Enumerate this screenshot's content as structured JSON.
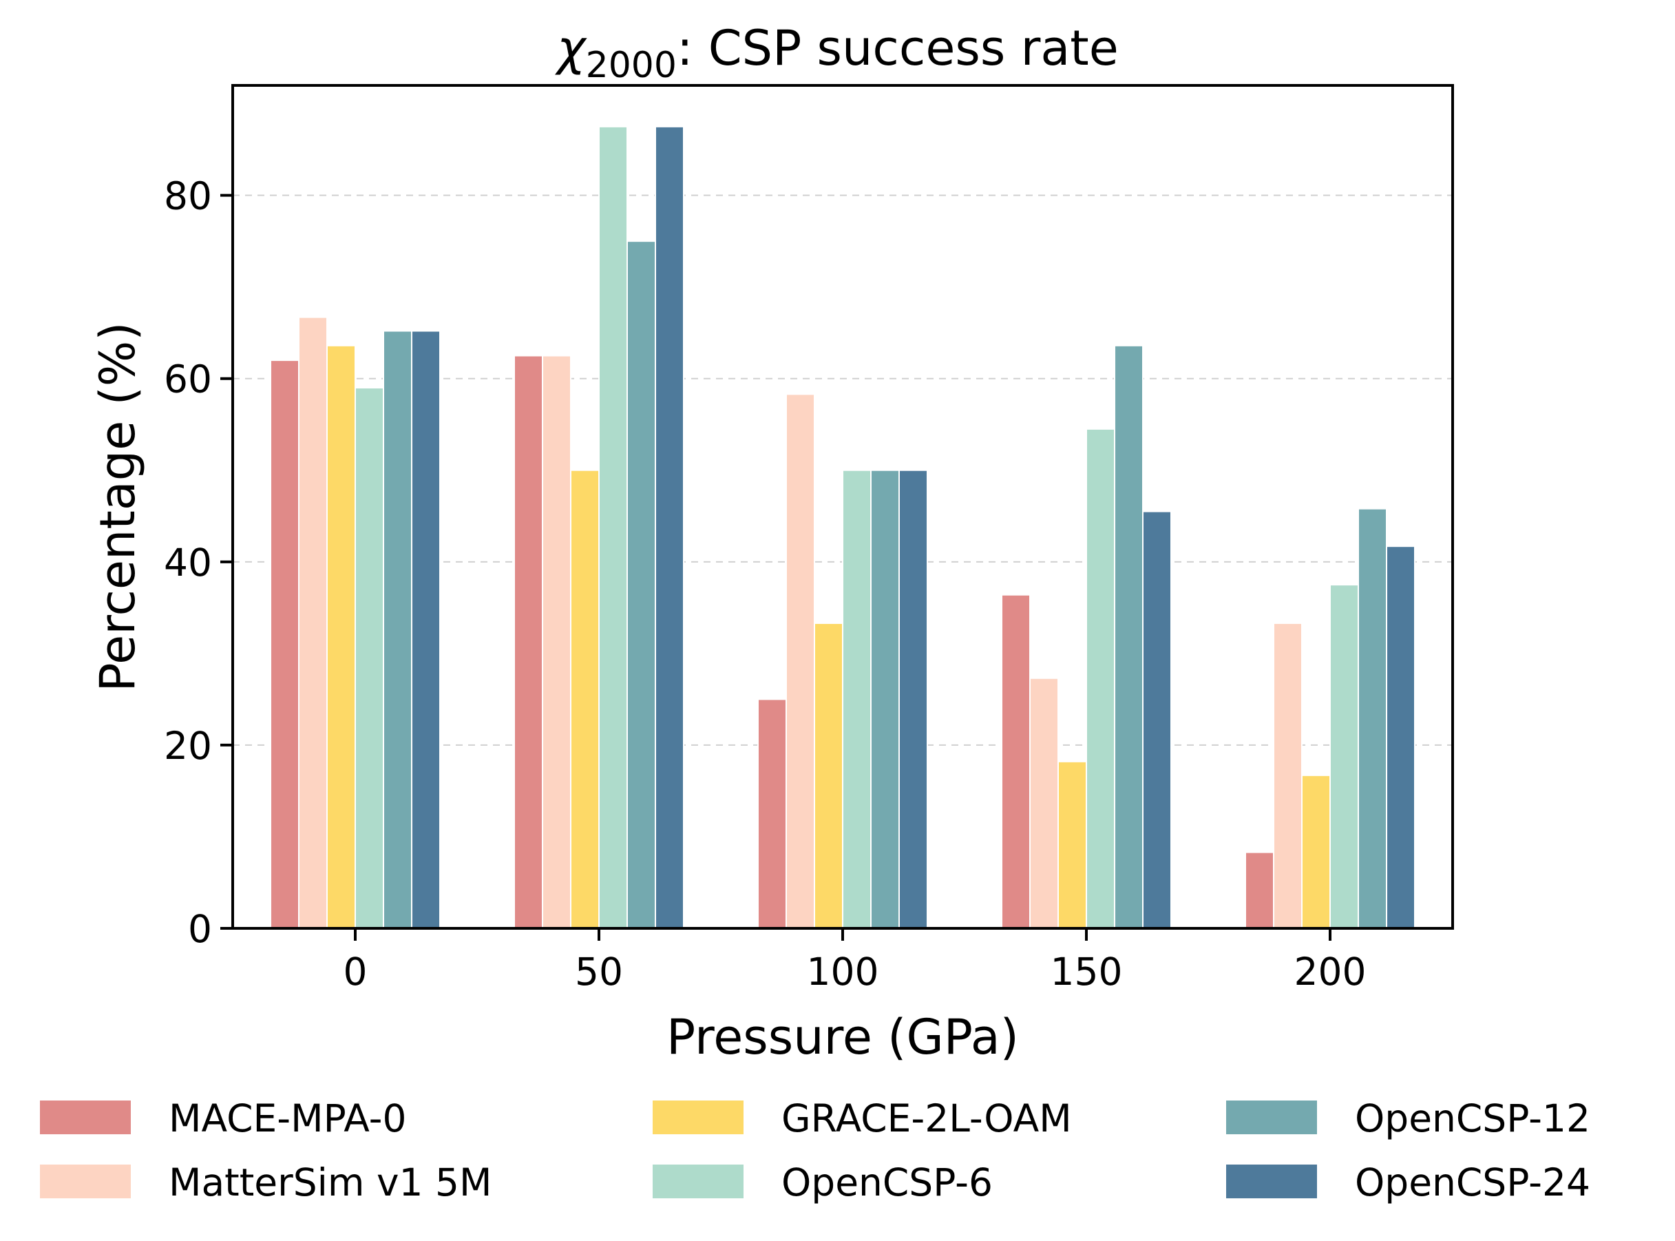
{
  "chart_data": {
    "type": "bar",
    "title_prefix": "χ",
    "title_subscript": "2000",
    "title_rest": ": CSP success rate",
    "xlabel": "Pressure (GPa)",
    "ylabel": "Percentage (%)",
    "categories": [
      "0",
      "50",
      "100",
      "150",
      "200"
    ],
    "y_ticks": [
      "0",
      "20",
      "40",
      "60",
      "80"
    ],
    "ylim": [
      0,
      92
    ],
    "grid": "horizontal dashed",
    "legend_position": "bottom",
    "series": [
      {
        "name": "MACE-MPA-0",
        "color": "#e08a88",
        "values": [
          62,
          62.5,
          25,
          36.4,
          8.3
        ]
      },
      {
        "name": "MatterSim v1 5M",
        "color": "#fdd4c2",
        "values": [
          66.7,
          62.5,
          58.3,
          27.3,
          33.3
        ]
      },
      {
        "name": "GRACE-2L-OAM",
        "color": "#fdd967",
        "values": [
          63.6,
          50,
          33.3,
          18.2,
          16.7
        ]
      },
      {
        "name": "OpenCSP-6",
        "color": "#aedbcb",
        "values": [
          59,
          87.5,
          50,
          54.5,
          37.5
        ]
      },
      {
        "name": "OpenCSP-12",
        "color": "#74a9af",
        "values": [
          65.2,
          75,
          50,
          63.6,
          45.8
        ]
      },
      {
        "name": "OpenCSP-24",
        "color": "#4e7a9b",
        "values": [
          65.2,
          87.5,
          50,
          45.5,
          41.7
        ]
      }
    ]
  }
}
